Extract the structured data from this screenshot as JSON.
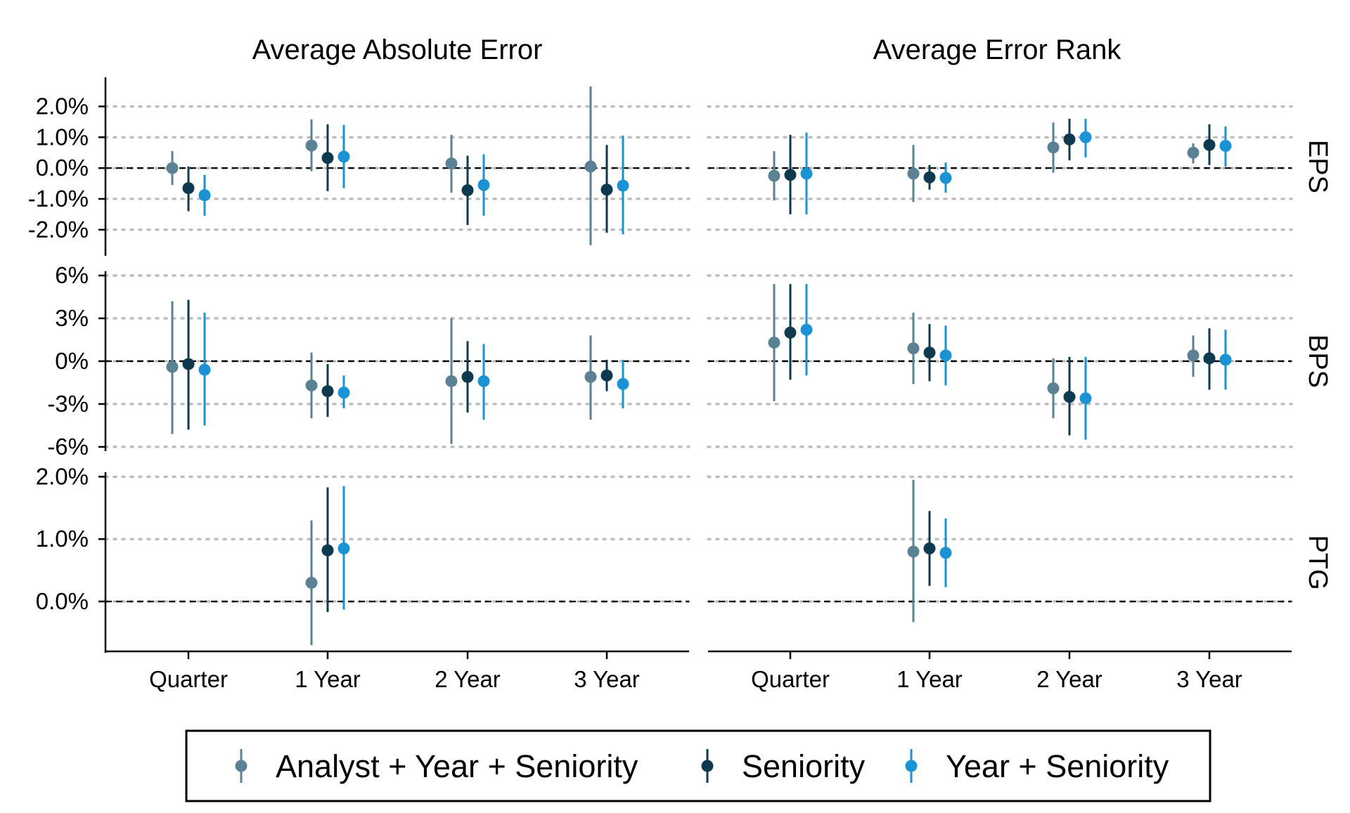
{
  "chart_data": {
    "type": "scatter",
    "subtype": "point-range",
    "columns": [
      "Average Absolute Error",
      "Average Error Rank"
    ],
    "categories": [
      "Quarter",
      "1 Year",
      "2 Year",
      "3 Year"
    ],
    "legend": {
      "placement": "bottom",
      "entries": [
        "Analyst + Year + Seniority",
        "Seniority",
        "Year + Seniority"
      ]
    },
    "series": [
      {
        "name": "Analyst + Year + Seniority",
        "color": "#5a8194"
      },
      {
        "name": "Seniority",
        "color": "#0d3a4e"
      },
      {
        "name": "Year + Seniority",
        "color": "#1b92d4"
      }
    ],
    "grid": "horizontal dotted",
    "reference_line": 0,
    "rows": [
      {
        "label": "EPS",
        "unit": "percent",
        "ylim": [
          -2.8,
          2.9
        ],
        "ticks": [
          2.0,
          1.0,
          0.0,
          -1.0,
          -2.0
        ],
        "tick_labels": [
          "2.0%",
          "1.0%",
          "0.0%",
          "-1.0%",
          "-2.0%"
        ],
        "panels": [
          {
            "column": "Average Absolute Error",
            "points": [
              [
                [
                  0.0,
                  -0.55,
                  0.55
                ],
                [
                  -0.65,
                  -1.4,
                  0.05
                ],
                [
                  -0.88,
                  -1.55,
                  -0.22
                ]
              ],
              [
                [
                  0.73,
                  -0.1,
                  1.58
                ],
                [
                  0.33,
                  -0.75,
                  1.42
                ],
                [
                  0.37,
                  -0.65,
                  1.4
                ]
              ],
              [
                [
                  0.15,
                  -0.8,
                  1.08
                ],
                [
                  -0.72,
                  -1.85,
                  0.4
                ],
                [
                  -0.55,
                  -1.55,
                  0.45
                ]
              ],
              [
                [
                  0.05,
                  -2.5,
                  2.65
                ],
                [
                  -0.7,
                  -2.1,
                  0.75
                ],
                [
                  -0.57,
                  -2.15,
                  1.05
                ]
              ]
            ]
          },
          {
            "column": "Average Error Rank",
            "points": [
              [
                [
                  -0.25,
                  -1.05,
                  0.55
                ],
                [
                  -0.22,
                  -1.5,
                  1.08
                ],
                [
                  -0.18,
                  -1.5,
                  1.15
                ]
              ],
              [
                [
                  -0.18,
                  -1.1,
                  0.75
                ],
                [
                  -0.3,
                  -0.7,
                  0.1
                ],
                [
                  -0.32,
                  -0.8,
                  0.18
                ]
              ],
              [
                [
                  0.67,
                  -0.15,
                  1.48
                ],
                [
                  0.93,
                  0.25,
                  1.6
                ],
                [
                  1.0,
                  0.35,
                  1.6
                ]
              ],
              [
                [
                  0.5,
                  0.15,
                  0.8
                ],
                [
                  0.75,
                  0.1,
                  1.42
                ],
                [
                  0.72,
                  0.05,
                  1.35
                ]
              ]
            ]
          }
        ]
      },
      {
        "label": "BPS",
        "unit": "percent",
        "ylim": [
          -6.2,
          6.2
        ],
        "ticks": [
          6,
          3,
          0,
          -3,
          -6
        ],
        "tick_labels": [
          "6%",
          "3%",
          "0%",
          "-3%",
          "-6%"
        ],
        "panels": [
          {
            "column": "Average Absolute Error",
            "points": [
              [
                [
                  -0.4,
                  -5.1,
                  4.2
                ],
                [
                  -0.2,
                  -4.8,
                  4.3
                ],
                [
                  -0.6,
                  -4.5,
                  3.4
                ]
              ],
              [
                [
                  -1.7,
                  -4.0,
                  0.6
                ],
                [
                  -2.1,
                  -3.9,
                  -0.2
                ],
                [
                  -2.2,
                  -3.3,
                  -1.0
                ]
              ],
              [
                [
                  -1.4,
                  -5.8,
                  3.0
                ],
                [
                  -1.1,
                  -3.6,
                  1.4
                ],
                [
                  -1.4,
                  -4.1,
                  1.2
                ]
              ],
              [
                [
                  -1.1,
                  -4.1,
                  1.8
                ],
                [
                  -1.0,
                  -2.1,
                  0.1
                ],
                [
                  -1.6,
                  -3.3,
                  0.1
                ]
              ]
            ]
          },
          {
            "column": "Average Error Rank",
            "points": [
              [
                [
                  1.3,
                  -2.8,
                  5.4
                ],
                [
                  2.0,
                  -1.3,
                  5.4
                ],
                [
                  2.2,
                  -1.0,
                  5.4
                ]
              ],
              [
                [
                  0.9,
                  -1.6,
                  3.4
                ],
                [
                  0.6,
                  -1.4,
                  2.6
                ],
                [
                  0.4,
                  -1.7,
                  2.5
                ]
              ],
              [
                [
                  -1.9,
                  -4.0,
                  0.2
                ],
                [
                  -2.5,
                  -5.2,
                  0.3
                ],
                [
                  -2.6,
                  -5.5,
                  0.3
                ]
              ],
              [
                [
                  0.4,
                  -1.1,
                  1.8
                ],
                [
                  0.2,
                  -2.0,
                  2.3
                ],
                [
                  0.1,
                  -2.0,
                  2.2
                ]
              ]
            ]
          }
        ]
      },
      {
        "label": "PTG",
        "unit": "percent",
        "ylim": [
          -0.8,
          2.05
        ],
        "ticks": [
          2.0,
          1.0,
          0.0
        ],
        "tick_labels": [
          "2.0%",
          "1.0%",
          "0.0%"
        ],
        "panels": [
          {
            "column": "Average Absolute Error",
            "points": [
              [
                null,
                null,
                null
              ],
              [
                [
                  0.3,
                  -0.7,
                  1.3
                ],
                [
                  0.82,
                  -0.17,
                  1.83
                ],
                [
                  0.85,
                  -0.13,
                  1.85
                ]
              ],
              [
                null,
                null,
                null
              ],
              [
                null,
                null,
                null
              ]
            ]
          },
          {
            "column": "Average Error Rank",
            "points": [
              [
                null,
                null,
                null
              ],
              [
                [
                  0.8,
                  -0.33,
                  1.95
                ],
                [
                  0.85,
                  0.25,
                  1.45
                ],
                [
                  0.78,
                  0.23,
                  1.33
                ]
              ],
              [
                null,
                null,
                null
              ],
              [
                null,
                null,
                null
              ]
            ]
          }
        ]
      }
    ]
  }
}
